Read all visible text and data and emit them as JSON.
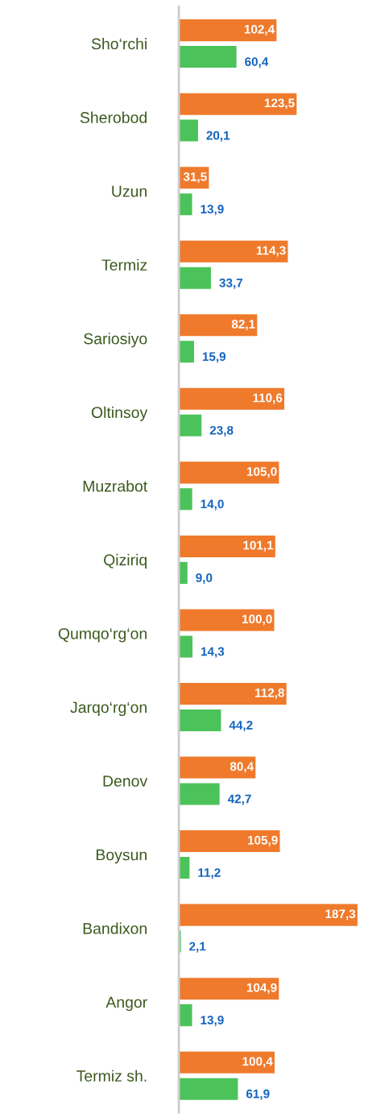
{
  "chart_data": {
    "type": "bar",
    "orientation": "horizontal",
    "tick_labels": "y",
    "grid": false,
    "legend": false,
    "categories": [
      "Sho‘rchi",
      "Sherobod",
      "Uzun",
      "Termiz",
      "Sariosiyo",
      "Oltinsoy",
      "Muzrabot",
      "Qiziriq",
      "Qumqo‘rg‘on",
      "Jarqo‘rg‘on",
      "Denov",
      "Boysun",
      "Bandixon",
      "Angor",
      "Termiz sh."
    ],
    "series": [
      {
        "color": "#ef7a2c",
        "values": [
          102.4,
          123.5,
          31.5,
          114.3,
          82.1,
          110.6,
          105.0,
          101.1,
          100.0,
          112.8,
          80.4,
          105.9,
          187.3,
          104.9,
          100.4
        ],
        "value_labels": [
          "102,4",
          "123,5",
          "31,5",
          "114,3",
          "82,1",
          "110,6",
          "105,0",
          "101,1",
          "100,0",
          "112,8",
          "80,4",
          "105,9",
          "187,3",
          "104,9",
          "100,4"
        ]
      },
      {
        "color": "#4cc25a",
        "values": [
          60.4,
          20.1,
          13.9,
          33.7,
          15.9,
          23.8,
          14.0,
          9.0,
          14.3,
          44.2,
          42.7,
          11.2,
          2.1,
          13.9,
          61.9
        ],
        "value_labels": [
          "60,4",
          "20,1",
          "13,9",
          "33,7",
          "15,9",
          "23,8",
          "14,0",
          "9,0",
          "14,3",
          "44,2",
          "42,7",
          "11,2",
          "2,1",
          "13,9",
          "61,9"
        ]
      }
    ]
  }
}
